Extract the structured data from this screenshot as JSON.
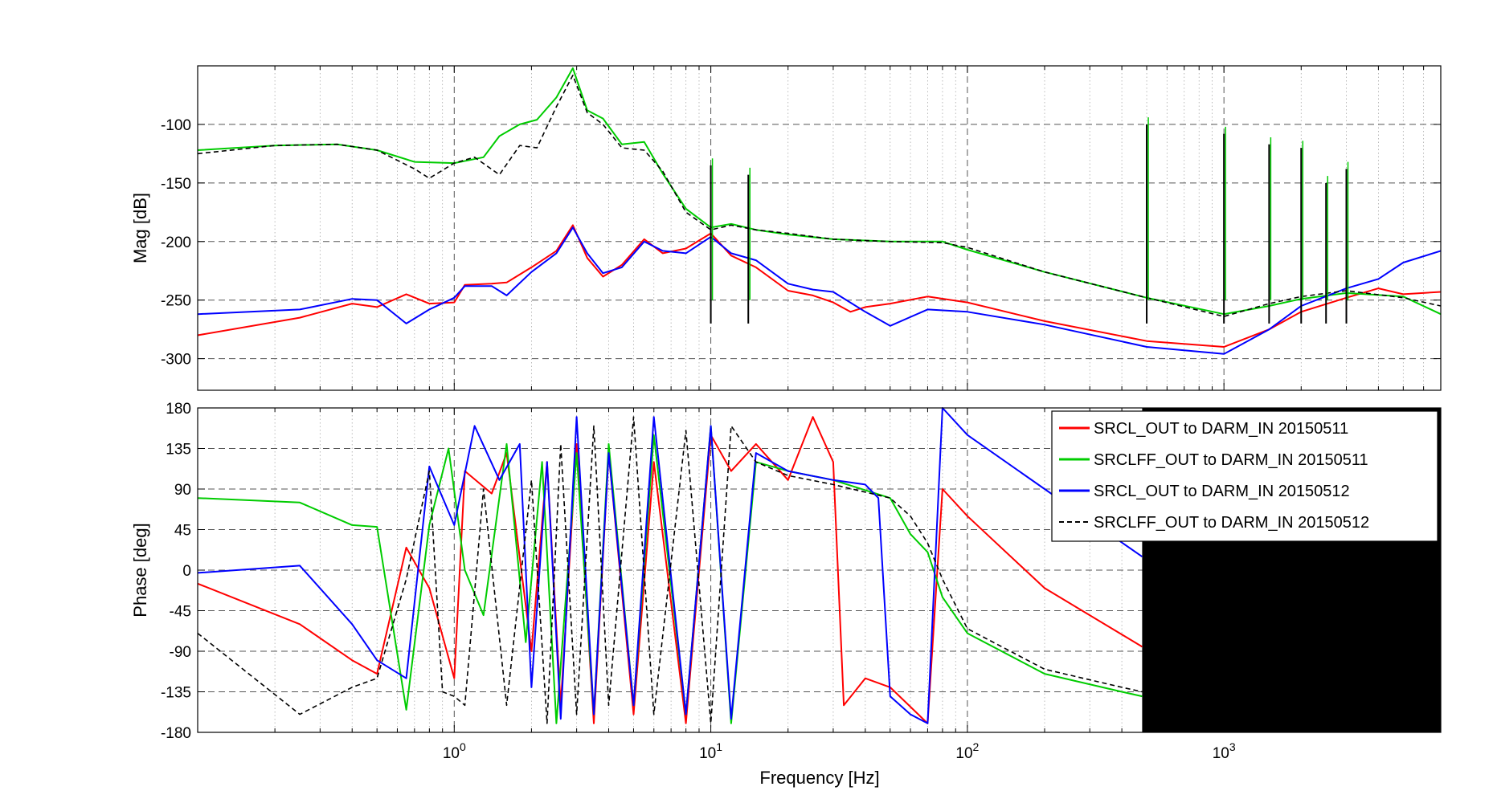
{
  "chart_data": [
    {
      "type": "line",
      "panel": "magnitude",
      "ylabel": "Mag [dB]",
      "xlabel": "",
      "xscale": "log",
      "xlim": [
        0.1,
        7000
      ],
      "ylim": [
        -327,
        -50
      ],
      "yticks": [
        -100,
        -150,
        -200,
        -250,
        -300
      ],
      "grid": true,
      "series": [
        {
          "name": "SRCL_OUT to DARM_IN 20150511",
          "color": "#ff0000",
          "style": "solid",
          "x": [
            0.1,
            0.25,
            0.4,
            0.5,
            0.65,
            0.8,
            1.0,
            1.1,
            1.4,
            1.6,
            2.0,
            2.5,
            2.9,
            3.3,
            3.8,
            4.5,
            5.5,
            6.5,
            8.0,
            10,
            12,
            15,
            20,
            25,
            30,
            35,
            40,
            50,
            70,
            100,
            200,
            500,
            1000,
            1500,
            2000,
            3000,
            4000,
            5000,
            7000
          ],
          "y": [
            -280,
            -265,
            -253,
            -256,
            -245,
            -253,
            -252,
            -237,
            -236,
            -235,
            -222,
            -208,
            -186,
            -214,
            -230,
            -220,
            -198,
            -210,
            -206,
            -193,
            -212,
            -222,
            -242,
            -246,
            -252,
            -260,
            -256,
            -253,
            -247,
            -252,
            -268,
            -285,
            -290,
            -275,
            -260,
            -248,
            -240,
            -245,
            -243
          ]
        },
        {
          "name": "SRCLFF_OUT to DARM_IN 20150511",
          "color": "#00cc00",
          "style": "solid",
          "x": [
            0.1,
            0.2,
            0.35,
            0.5,
            0.7,
            1.0,
            1.3,
            1.5,
            1.8,
            2.1,
            2.5,
            2.9,
            3.3,
            3.8,
            4.5,
            5.5,
            6.5,
            8,
            10,
            12,
            15,
            20,
            30,
            50,
            80,
            100,
            200,
            500,
            1000,
            1500,
            2000,
            3000,
            5000,
            7000
          ],
          "y": [
            -122,
            -118,
            -117,
            -122,
            -132,
            -133,
            -128,
            -110,
            -100,
            -96,
            -77,
            -52,
            -88,
            -95,
            -117,
            -115,
            -142,
            -172,
            -188,
            -185,
            -190,
            -194,
            -198,
            -200,
            -200,
            -207,
            -226,
            -248,
            -262,
            -255,
            -249,
            -244,
            -247,
            -262
          ]
        },
        {
          "name": "SRCL_OUT to DARM_IN 20150512",
          "color": "#0000ff",
          "style": "solid",
          "x": [
            0.1,
            0.25,
            0.4,
            0.5,
            0.65,
            0.8,
            1.0,
            1.1,
            1.4,
            1.6,
            2.0,
            2.5,
            2.9,
            3.3,
            3.8,
            4.5,
            5.5,
            6.5,
            8.0,
            10,
            12,
            15,
            20,
            25,
            30,
            40,
            50,
            70,
            100,
            200,
            500,
            1000,
            1500,
            2000,
            3000,
            4000,
            5000,
            7000
          ],
          "y": [
            -262,
            -258,
            -249,
            -250,
            -270,
            -258,
            -248,
            -238,
            -238,
            -246,
            -226,
            -210,
            -188,
            -210,
            -227,
            -222,
            -200,
            -208,
            -210,
            -196,
            -210,
            -216,
            -236,
            -241,
            -243,
            -260,
            -272,
            -258,
            -260,
            -271,
            -290,
            -296,
            -275,
            -255,
            -240,
            -232,
            -218,
            -208
          ]
        },
        {
          "name": "SRCLFF_OUT to DARM_IN 20150512",
          "color": "#000000",
          "style": "dashed",
          "x": [
            0.1,
            0.2,
            0.35,
            0.5,
            0.7,
            0.8,
            1.0,
            1.2,
            1.5,
            1.8,
            2.1,
            2.5,
            2.9,
            3.3,
            3.8,
            4.5,
            5.5,
            6.5,
            8,
            10,
            12,
            15,
            20,
            30,
            50,
            80,
            100,
            200,
            500,
            1000,
            1500,
            2000,
            3000,
            5000,
            7000
          ],
          "y": [
            -125,
            -118,
            -117,
            -122,
            -138,
            -146,
            -133,
            -128,
            -143,
            -118,
            -120,
            -85,
            -58,
            -90,
            -100,
            -120,
            -122,
            -140,
            -175,
            -190,
            -186,
            -190,
            -193,
            -198,
            -200,
            -201,
            -205,
            -226,
            -248,
            -264,
            -253,
            -247,
            -242,
            -248,
            -255
          ]
        }
      ],
      "spikes": [
        {
          "x": 10,
          "y": -135
        },
        {
          "x": 14,
          "y": -143
        },
        {
          "x": 500,
          "y": -100
        },
        {
          "x": 1000,
          "y": -108
        },
        {
          "x": 1500,
          "y": -117
        },
        {
          "x": 2000,
          "y": -120
        },
        {
          "x": 2500,
          "y": -150
        },
        {
          "x": 3000,
          "y": -138
        }
      ]
    },
    {
      "type": "line",
      "panel": "phase",
      "ylabel": "Phase [deg]",
      "xlabel": "Frequency [Hz]",
      "xscale": "log",
      "xlim": [
        0.1,
        7000
      ],
      "ylim": [
        -180,
        180
      ],
      "yticks": [
        180,
        135,
        90,
        45,
        0,
        -45,
        -90,
        -135,
        -180
      ],
      "xticks": [
        {
          "value": 1,
          "base": "10",
          "exp": "0"
        },
        {
          "value": 10,
          "base": "10",
          "exp": "1"
        },
        {
          "value": 100,
          "base": "10",
          "exp": "2"
        },
        {
          "value": 1000,
          "base": "10",
          "exp": "3"
        }
      ],
      "grid": true,
      "legend_position": "top-right",
      "series": [
        {
          "name": "SRCL_OUT to DARM_IN 20150511",
          "color": "#ff0000",
          "style": "solid",
          "x": [
            0.1,
            0.25,
            0.4,
            0.5,
            0.65,
            0.8,
            1.0,
            1.1,
            1.4,
            1.6,
            2.0,
            2.3,
            2.6,
            3.0,
            3.5,
            4.0,
            5.0,
            6.0,
            8.0,
            10,
            12,
            15,
            20,
            25,
            30,
            33,
            40,
            50,
            70,
            80,
            100,
            200,
            480
          ],
          "y": [
            -15,
            -60,
            -100,
            -115,
            25,
            -20,
            -120,
            110,
            85,
            130,
            -90,
            120,
            -150,
            140,
            -170,
            130,
            -160,
            120,
            -170,
            150,
            110,
            140,
            100,
            170,
            120,
            -150,
            -120,
            -130,
            -170,
            90,
            60,
            -20,
            -85
          ]
        },
        {
          "name": "SRCLFF_OUT to DARM_IN 20150511",
          "color": "#00cc00",
          "style": "solid",
          "x": [
            0.1,
            0.25,
            0.4,
            0.5,
            0.65,
            0.8,
            0.95,
            1.1,
            1.3,
            1.6,
            1.9,
            2.2,
            2.5,
            3.0,
            3.5,
            4.0,
            5.0,
            6.0,
            8.0,
            10,
            12,
            15,
            20,
            30,
            50,
            60,
            70,
            80,
            100,
            200,
            400,
            480
          ],
          "y": [
            80,
            75,
            50,
            48,
            -155,
            50,
            135,
            0,
            -50,
            140,
            -80,
            120,
            -170,
            130,
            -160,
            140,
            -150,
            150,
            -160,
            160,
            -170,
            120,
            110,
            100,
            80,
            40,
            20,
            -30,
            -70,
            -115,
            -135,
            -140
          ]
        },
        {
          "name": "SRCL_OUT to DARM_IN 20150512",
          "color": "#0000ff",
          "style": "solid",
          "x": [
            0.1,
            0.25,
            0.4,
            0.5,
            0.65,
            0.8,
            1.0,
            1.2,
            1.5,
            1.8,
            2.0,
            2.3,
            2.6,
            3.0,
            3.5,
            4.0,
            5.0,
            6.0,
            8.0,
            10,
            12,
            15,
            20,
            30,
            40,
            45,
            50,
            60,
            70,
            80,
            100,
            200,
            480
          ],
          "y": [
            -3,
            5,
            -60,
            -100,
            -120,
            115,
            50,
            160,
            100,
            140,
            -130,
            120,
            -165,
            170,
            -160,
            130,
            -150,
            170,
            -160,
            160,
            -165,
            130,
            110,
            100,
            95,
            80,
            -140,
            -160,
            -170,
            180,
            150,
            90,
            15
          ]
        },
        {
          "name": "SRCLFF_OUT to DARM_IN 20150512",
          "color": "#000000",
          "style": "dashed",
          "x": [
            0.1,
            0.25,
            0.4,
            0.5,
            0.65,
            0.8,
            0.9,
            1.0,
            1.1,
            1.3,
            1.6,
            2.0,
            2.3,
            2.6,
            3.0,
            3.5,
            4.0,
            5.0,
            6.0,
            8.0,
            10,
            12,
            15,
            20,
            30,
            50,
            60,
            70,
            80,
            100,
            200,
            400,
            480
          ],
          "y": [
            -70,
            -160,
            -130,
            -120,
            -10,
            110,
            -135,
            -140,
            -150,
            90,
            -150,
            100,
            -170,
            140,
            -160,
            160,
            -150,
            170,
            -160,
            155,
            -170,
            160,
            120,
            105,
            95,
            80,
            60,
            30,
            -10,
            -65,
            -110,
            -130,
            -135
          ]
        }
      ]
    }
  ],
  "legend": {
    "entries": [
      {
        "label": "SRCL_OUT to DARM_IN 20150511",
        "color": "#ff0000",
        "style": "solid"
      },
      {
        "label": "SRCLFF_OUT to DARM_IN 20150511",
        "color": "#00cc00",
        "style": "solid"
      },
      {
        "label": "SRCL_OUT to DARM_IN 20150512",
        "color": "#0000ff",
        "style": "solid"
      },
      {
        "label": "SRCLFF_OUT to DARM_IN 20150512",
        "color": "#000000",
        "style": "dashed"
      }
    ]
  },
  "noise_region": {
    "x_start": 480,
    "x_end": 7000,
    "color": "#000000"
  }
}
